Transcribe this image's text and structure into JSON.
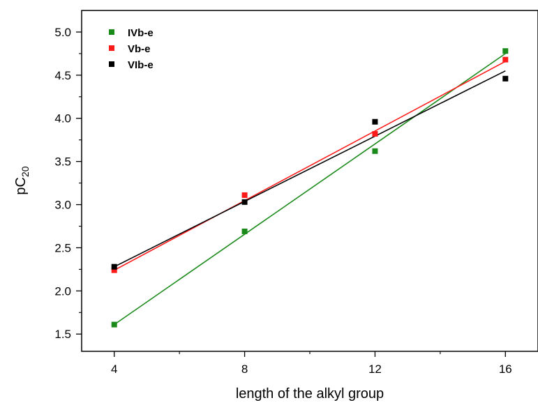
{
  "chart_data": {
    "type": "scatter",
    "xlabel": "length of the alkyl group",
    "ylabel_main": "pC",
    "ylabel_sub": "20",
    "xlim": [
      3,
      17
    ],
    "ylim": [
      1.3,
      5.25
    ],
    "xticks": [
      4,
      8,
      12,
      16
    ],
    "xticks_minor": [
      6,
      10,
      14
    ],
    "yticks": [
      1.5,
      2.0,
      2.5,
      3.0,
      3.5,
      4.0,
      4.5,
      5.0
    ],
    "xtick_labels": [
      "4",
      "8",
      "12",
      "16"
    ],
    "ytick_labels": [
      "1.5",
      "2.0",
      "2.5",
      "3.0",
      "3.5",
      "4.0",
      "4.5",
      "5.0"
    ],
    "grid": false,
    "legend_position": "top-left",
    "series": [
      {
        "name": "IVb-e",
        "color": "#1a8a1a",
        "x": [
          4,
          8,
          12,
          16
        ],
        "y": [
          1.61,
          2.69,
          3.62,
          4.78
        ],
        "fit": [
          [
            4,
            1.61
          ],
          [
            16,
            4.75
          ]
        ]
      },
      {
        "name": "Vb-e",
        "color": "#ff1a1a",
        "x": [
          4,
          8,
          12,
          16
        ],
        "y": [
          2.24,
          3.11,
          3.82,
          4.68
        ],
        "fit": [
          [
            4,
            2.24
          ],
          [
            16,
            4.66
          ]
        ]
      },
      {
        "name": "VIb-e",
        "color": "#000000",
        "x": [
          4,
          8,
          12,
          16
        ],
        "y": [
          2.28,
          3.03,
          3.96,
          4.46
        ],
        "fit": [
          [
            4,
            2.28
          ],
          [
            16,
            4.55
          ]
        ]
      }
    ]
  }
}
